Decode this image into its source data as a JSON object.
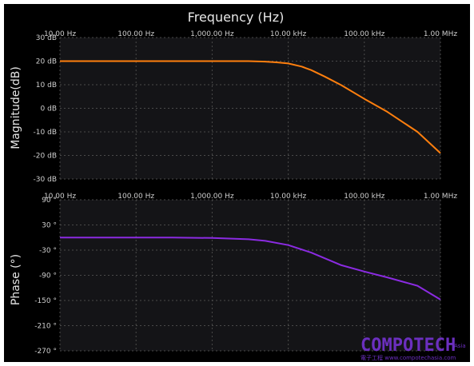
{
  "title": "Frequency (Hz)",
  "colors": {
    "background": "#000000",
    "plot_area": "#141417",
    "grid": "#4a4a4a",
    "magnitude": "#ff7f0e",
    "phase": "#8b2be2",
    "watermark": "#6b2fbf"
  },
  "x_tick_labels": [
    "10.00 Hz",
    "100.00 Hz",
    "1,000.00 Hz",
    "10.00 kHz",
    "100.00 kHz",
    "1.00 MHz"
  ],
  "watermark": {
    "main": "COMPOTECH",
    "superscript": "Asia",
    "sub": "電子工程 www.compotechasia.com"
  },
  "chart_data": [
    {
      "type": "line",
      "ylabel": "Magnitude(dB)",
      "xscale": "log",
      "xlim": [
        10,
        1000000
      ],
      "ylim": [
        -30,
        30
      ],
      "yticks": [
        30,
        20,
        10,
        0,
        -10,
        -20,
        -30
      ],
      "ytick_labels": [
        "30 dB",
        "20 dB",
        "10 dB",
        "0 dB",
        "-10 dB",
        "-20 dB",
        "-30 dB"
      ],
      "grid": true,
      "series": [
        {
          "color": "#ff7f0e",
          "x": [
            10,
            100,
            1000,
            3000,
            5000,
            7000,
            10000,
            15000,
            20000,
            30000,
            50000,
            100000,
            200000,
            500000,
            1000000
          ],
          "y": [
            20,
            20,
            20,
            20,
            19.8,
            19.5,
            19,
            17.7,
            16.2,
            13.5,
            9.8,
            4,
            -1.5,
            -10,
            -19
          ]
        }
      ]
    },
    {
      "type": "line",
      "ylabel": "Phase (°)",
      "xscale": "log",
      "xlim": [
        10,
        1000000
      ],
      "ylim": [
        -270,
        90
      ],
      "yticks": [
        90,
        30,
        -30,
        -90,
        -150,
        -210,
        -270
      ],
      "ytick_labels": [
        "90 °",
        "30 °",
        "-30 °",
        "-90 °",
        "-150 °",
        "-210 °",
        "-270 °"
      ],
      "grid": true,
      "series": [
        {
          "color": "#8b2be2",
          "x": [
            10,
            100,
            300,
            1000,
            3000,
            5000,
            10000,
            20000,
            50000,
            100000,
            200000,
            500000,
            1000000
          ],
          "y": [
            0,
            0,
            0,
            -1,
            -4,
            -8,
            -18,
            -36,
            -66,
            -81,
            -95,
            -115,
            -148
          ]
        }
      ]
    }
  ]
}
